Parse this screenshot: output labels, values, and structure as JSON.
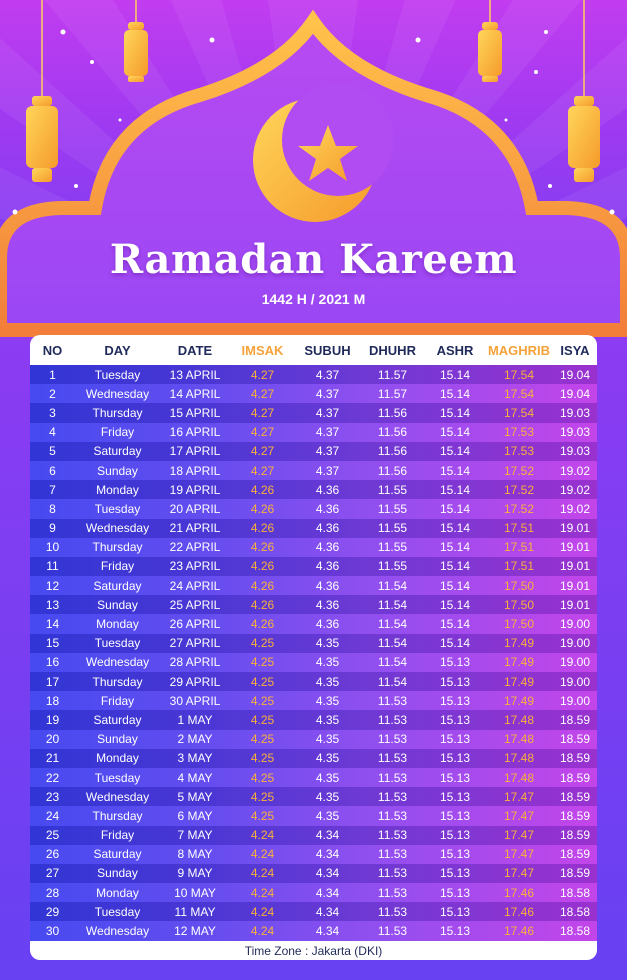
{
  "title": "Ramadan Kareem",
  "subtitle": "1442 H / 2021 M",
  "colors": {
    "accent": "#f6a23a",
    "arch": "#f7a84a",
    "header_text": "#1f2a5a"
  },
  "headers": [
    "NO",
    "DAY",
    "DATE",
    "IMSAK",
    "SUBUH",
    "DHUHR",
    "ASHR",
    "MAGHRIB",
    "ISYA"
  ],
  "rows": [
    [
      "1",
      "Tuesday",
      "13 APRIL",
      "4.27",
      "4.37",
      "11.57",
      "15.14",
      "17.54",
      "19.04"
    ],
    [
      "2",
      "Wednesday",
      "14 APRIL",
      "4.27",
      "4.37",
      "11.57",
      "15.14",
      "17.54",
      "19.04"
    ],
    [
      "3",
      "Thursday",
      "15 APRIL",
      "4.27",
      "4.37",
      "11.56",
      "15.14",
      "17.54",
      "19.03"
    ],
    [
      "4",
      "Friday",
      "16 APRIL",
      "4.27",
      "4.37",
      "11.56",
      "15.14",
      "17.53",
      "19.03"
    ],
    [
      "5",
      "Saturday",
      "17 APRIL",
      "4.27",
      "4.37",
      "11.56",
      "15.14",
      "17.53",
      "19.03"
    ],
    [
      "6",
      "Sunday",
      "18 APRIL",
      "4.27",
      "4.37",
      "11.56",
      "15.14",
      "17.52",
      "19.02"
    ],
    [
      "7",
      "Monday",
      "19 APRIL",
      "4.26",
      "4.36",
      "11.55",
      "15.14",
      "17.52",
      "19.02"
    ],
    [
      "8",
      "Tuesday",
      "20 APRIL",
      "4.26",
      "4.36",
      "11.55",
      "15.14",
      "17.52",
      "19.02"
    ],
    [
      "9",
      "Wednesday",
      "21 APRIL",
      "4.26",
      "4.36",
      "11.55",
      "15.14",
      "17.51",
      "19.01"
    ],
    [
      "10",
      "Thursday",
      "22 APRIL",
      "4.26",
      "4.36",
      "11.55",
      "15.14",
      "17.51",
      "19.01"
    ],
    [
      "11",
      "Friday",
      "23 APRIL",
      "4.26",
      "4.36",
      "11.55",
      "15.14",
      "17.51",
      "19.01"
    ],
    [
      "12",
      "Saturday",
      "24 APRIL",
      "4.26",
      "4.36",
      "11.54",
      "15.14",
      "17.50",
      "19.01"
    ],
    [
      "13",
      "Sunday",
      "25 APRIL",
      "4.26",
      "4.36",
      "11.54",
      "15.14",
      "17.50",
      "19.01"
    ],
    [
      "14",
      "Monday",
      "26 APRIL",
      "4.26",
      "4.36",
      "11.54",
      "15.14",
      "17.50",
      "19.00"
    ],
    [
      "15",
      "Tuesday",
      "27 APRIL",
      "4.25",
      "4.35",
      "11.54",
      "15.14",
      "17.49",
      "19.00"
    ],
    [
      "16",
      "Wednesday",
      "28 APRIL",
      "4.25",
      "4.35",
      "11.54",
      "15.13",
      "17.49",
      "19.00"
    ],
    [
      "17",
      "Thursday",
      "29 APRIL",
      "4.25",
      "4.35",
      "11.54",
      "15.13",
      "17.49",
      "19.00"
    ],
    [
      "18",
      "Friday",
      "30 APRIL",
      "4.25",
      "4.35",
      "11.53",
      "15.13",
      "17.49",
      "19.00"
    ],
    [
      "19",
      "Saturday",
      "1 MAY",
      "4.25",
      "4.35",
      "11.53",
      "15.13",
      "17.48",
      "18.59"
    ],
    [
      "20",
      "Sunday",
      "2 MAY",
      "4.25",
      "4.35",
      "11.53",
      "15.13",
      "17.48",
      "18.59"
    ],
    [
      "21",
      "Monday",
      "3 MAY",
      "4.25",
      "4.35",
      "11.53",
      "15.13",
      "17.48",
      "18.59"
    ],
    [
      "22",
      "Tuesday",
      "4 MAY",
      "4.25",
      "4.35",
      "11.53",
      "15.13",
      "17.48",
      "18.59"
    ],
    [
      "23",
      "Wednesday",
      "5 MAY",
      "4.25",
      "4.35",
      "11.53",
      "15.13",
      "17.47",
      "18.59"
    ],
    [
      "24",
      "Thursday",
      "6 MAY",
      "4.25",
      "4.35",
      "11.53",
      "15.13",
      "17.47",
      "18.59"
    ],
    [
      "25",
      "Friday",
      "7 MAY",
      "4.24",
      "4.34",
      "11.53",
      "15.13",
      "17.47",
      "18.59"
    ],
    [
      "26",
      "Saturday",
      "8 MAY",
      "4.24",
      "4.34",
      "11.53",
      "15.13",
      "17.47",
      "18.59"
    ],
    [
      "27",
      "Sunday",
      "9 MAY",
      "4.24",
      "4.34",
      "11.53",
      "15.13",
      "17.47",
      "18.59"
    ],
    [
      "28",
      "Monday",
      "10 MAY",
      "4.24",
      "4.34",
      "11.53",
      "15.13",
      "17.46",
      "18.58"
    ],
    [
      "29",
      "Tuesday",
      "11 MAY",
      "4.24",
      "4.34",
      "11.53",
      "15.13",
      "17.46",
      "18.58"
    ],
    [
      "30",
      "Wednesday",
      "12 MAY",
      "4.24",
      "4.34",
      "11.53",
      "15.13",
      "17.46",
      "18.58"
    ]
  ],
  "footer": "Time Zone : Jakarta (DKI)"
}
